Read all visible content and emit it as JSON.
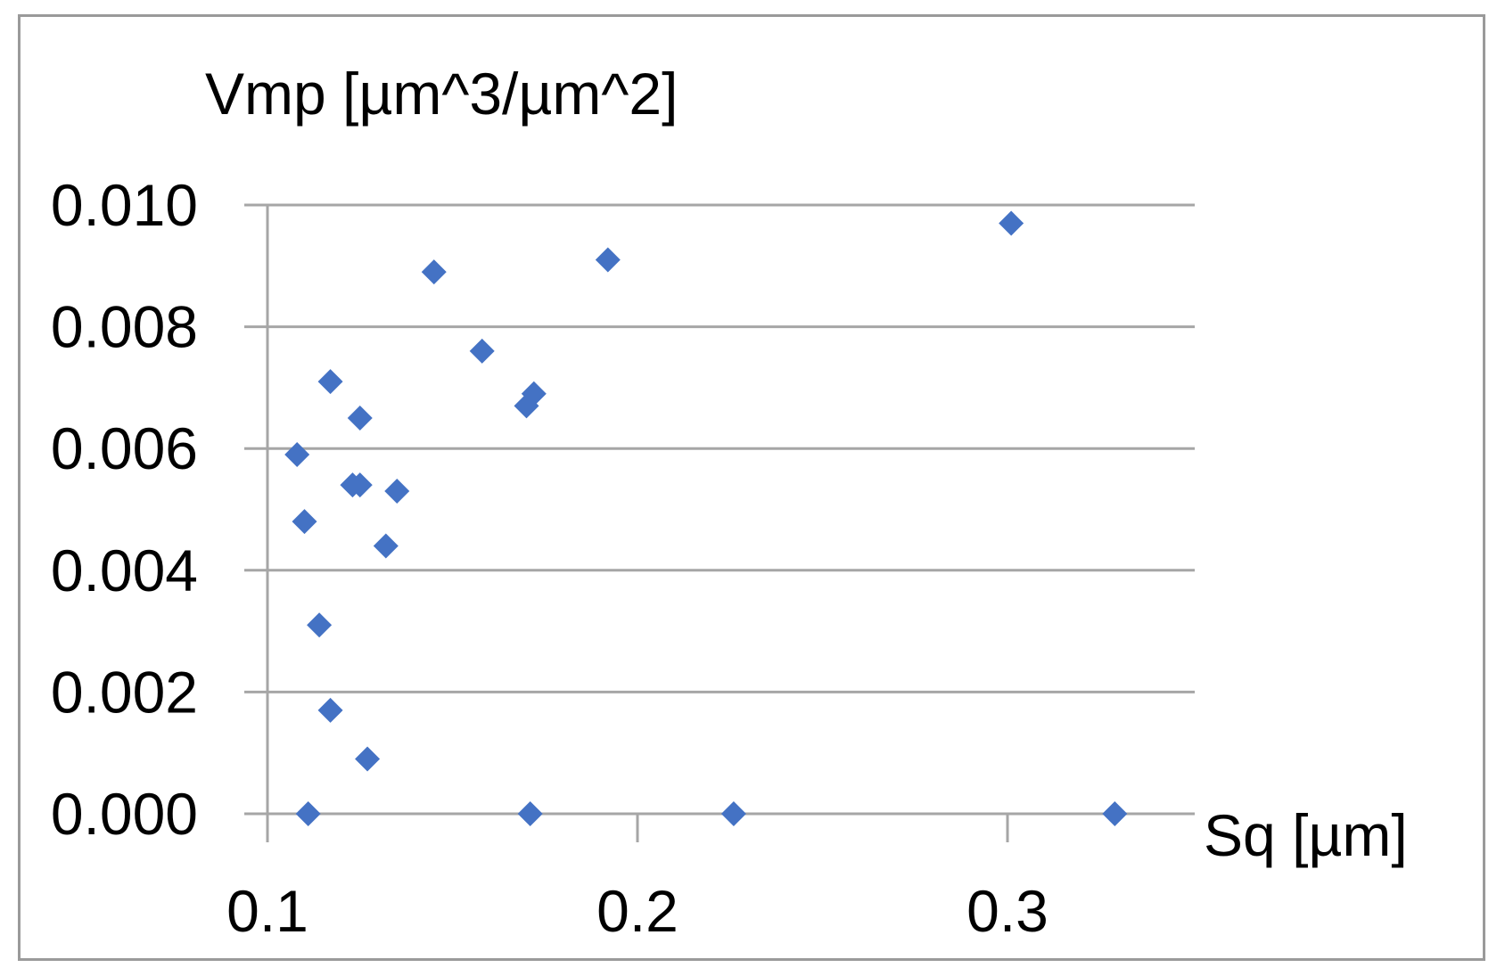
{
  "chart_data": {
    "type": "scatter",
    "title": "",
    "xlabel": "Sq [µm]",
    "ylabel": "Vmp [µm^3/µm^2]",
    "xlim": [
      0.1,
      0.35
    ],
    "ylim": [
      0.0,
      0.01
    ],
    "x_ticks": [
      0.1,
      0.2,
      0.3
    ],
    "x_tick_labels": [
      "0.1",
      "0.2",
      "0.3"
    ],
    "y_ticks": [
      0.0,
      0.002,
      0.004,
      0.006,
      0.008,
      0.01
    ],
    "y_tick_labels": [
      "0.000",
      "0.002",
      "0.004",
      "0.006",
      "0.008",
      "0.010"
    ],
    "grid": "horizontal",
    "legend": "none",
    "marker": "diamond",
    "colors": {
      "marker": "#4472C4",
      "grid": "#a6a6a6",
      "frame": "#9a9a9a"
    },
    "series": [
      {
        "x": [
          0.301,
          0.192,
          0.145,
          0.158,
          0.172,
          0.17,
          0.117,
          0.125,
          0.108,
          0.123,
          0.125,
          0.11,
          0.132,
          0.135,
          0.114,
          0.117,
          0.127,
          0.111,
          0.171,
          0.226,
          0.329
        ],
        "y": [
          0.0097,
          0.0091,
          0.0089,
          0.0076,
          0.0069,
          0.0067,
          0.0071,
          0.0065,
          0.0059,
          0.0054,
          0.0054,
          0.0048,
          0.0044,
          0.0053,
          0.0031,
          0.0017,
          0.0009,
          0.0,
          0.0,
          0.0,
          0.0
        ]
      }
    ]
  }
}
